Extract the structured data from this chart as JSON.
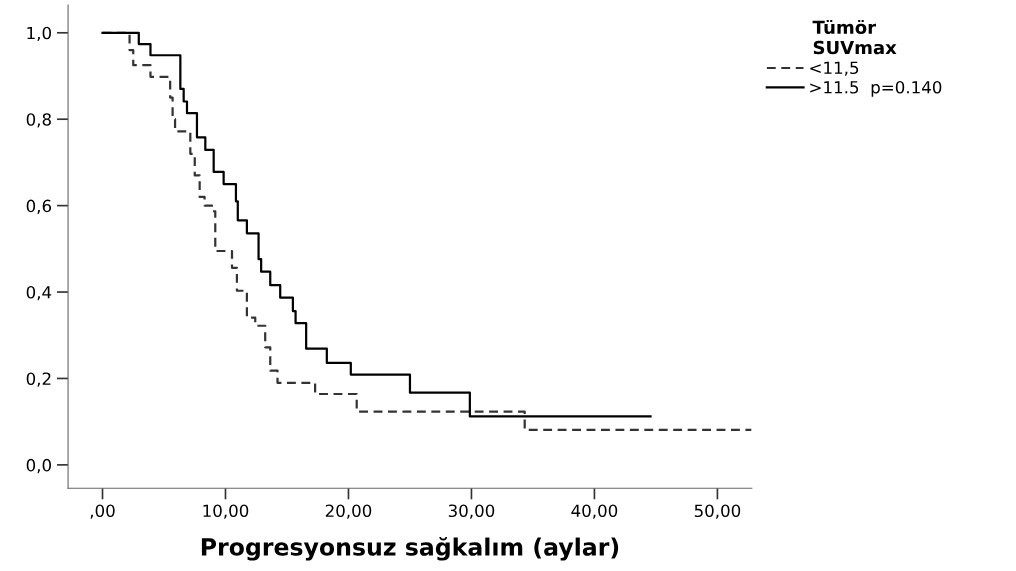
{
  "chart_data": {
    "type": "step",
    "xlabel": "Progresyonsuz sağkalım (aylar)",
    "legend_title": "Tümör\nSUVmax",
    "legend": "top right",
    "marker": "none",
    "grid": false,
    "xlim": [
      -2.8,
      52.8
    ],
    "ylim": [
      -0.054,
      1.064
    ],
    "xticks": [
      {
        "value": 0,
        "label": ",00"
      },
      {
        "value": 10,
        "label": "10,00"
      },
      {
        "value": 20,
        "label": "20,00"
      },
      {
        "value": 30,
        "label": "30,00"
      },
      {
        "value": 40,
        "label": "40,00"
      },
      {
        "value": 50,
        "label": "50,00"
      }
    ],
    "yticks": [
      {
        "value": 0,
        "label": "0,0"
      },
      {
        "value": 0.2,
        "label": "0,2"
      },
      {
        "value": 0.4,
        "label": "0,4"
      },
      {
        "value": 0.6,
        "label": "0,6"
      },
      {
        "value": 0.8,
        "label": "0,8"
      },
      {
        "value": 1.0,
        "label": "1,0"
      }
    ],
    "series": [
      {
        "name": "<11,5",
        "color": "#333333",
        "line_style": "dashed",
        "x": [
          0,
          2.2,
          2.5,
          3.9,
          5.5,
          5.7,
          5.9,
          7.14,
          7.5,
          7.9,
          8.3,
          8.9,
          9.17,
          10.53,
          10.93,
          11.74,
          12.42,
          13.23,
          13.64,
          14.23,
          17.29,
          20.67,
          34.33,
          52.76
        ],
        "values": [
          1.0,
          0.96,
          0.925,
          0.898,
          0.85,
          0.8,
          0.772,
          0.72,
          0.67,
          0.62,
          0.6,
          0.587,
          0.495,
          0.456,
          0.403,
          0.341,
          0.322,
          0.272,
          0.218,
          0.19,
          0.164,
          0.123,
          0.081,
          0.081
        ]
      },
      {
        "name": ">11.5  p=0.140",
        "color": "#000000",
        "line_style": "solid",
        "x": [
          0,
          2.95,
          3.9,
          6.33,
          6.6,
          6.87,
          7.68,
          8.36,
          9.04,
          9.85,
          10.85,
          11.0,
          11.74,
          12.69,
          12.9,
          13.64,
          14.45,
          15.48,
          15.7,
          16.56,
          18.24,
          20.19,
          25.0,
          29.87,
          44.56
        ],
        "values": [
          1.0,
          0.974,
          0.948,
          0.87,
          0.841,
          0.814,
          0.758,
          0.729,
          0.678,
          0.65,
          0.61,
          0.566,
          0.536,
          0.476,
          0.447,
          0.416,
          0.387,
          0.356,
          0.328,
          0.269,
          0.236,
          0.209,
          0.167,
          0.112,
          0.112
        ]
      }
    ]
  }
}
